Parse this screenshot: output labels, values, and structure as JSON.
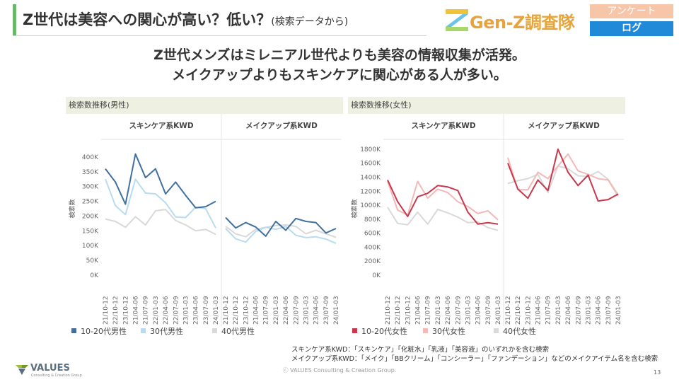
{
  "header": {
    "title": "Z世代は美容への関心が高い？低い？",
    "title_sub": "(検索データから)",
    "logo_text": "Gen-Z調査隊",
    "badge_survey": "アンケート",
    "badge_log": "ログ"
  },
  "headline": {
    "line1": "Z世代メンズはミレニアル世代よりも美容の情報収集が活発。",
    "line2": "メイクアップよりもスキンケアに関心がある人が多い。"
  },
  "chart_data": [
    {
      "type": "line",
      "title": "検索数推移(男性)",
      "ylabel": "検索数",
      "ylim": [
        0,
        450000
      ],
      "y_ticks": [
        "0K",
        "50K",
        "100K",
        "150K",
        "200K",
        "250K",
        "300K",
        "350K",
        "400K"
      ],
      "categories": [
        "21/10-12",
        "22/10-12",
        "23/10-12",
        "21/04-06",
        "21/07-09",
        "22/01-03",
        "22/04-06",
        "22/07-09",
        "23/01-03",
        "23/04-06",
        "23/07-09",
        "24/01-03"
      ],
      "facets": [
        {
          "label": "スキンケア系KWD",
          "series": [
            {
              "name": "10-20代男性",
              "values": [
                360000,
                315000,
                240000,
                410000,
                330000,
                360000,
                275000,
                315000,
                270000,
                228000,
                232000,
                250000
              ]
            },
            {
              "name": "30代男性",
              "values": [
                325000,
                235000,
                205000,
                325000,
                278000,
                275000,
                245000,
                197000,
                195000,
                230000,
                225000,
                160000
              ]
            },
            {
              "name": "40代男性",
              "values": [
                190000,
                182000,
                162000,
                198000,
                170000,
                218000,
                222000,
                185000,
                170000,
                150000,
                155000,
                138000
              ]
            }
          ]
        },
        {
          "label": "メイクアップ系KWD",
          "series": [
            {
              "name": "10-20代男性",
              "values": [
                195000,
                160000,
                178000,
                163000,
                132000,
                182000,
                152000,
                192000,
                182000,
                178000,
                143000,
                158000
              ]
            },
            {
              "name": "30代男性",
              "values": [
                158000,
                123000,
                112000,
                148000,
                162000,
                155000,
                165000,
                135000,
                127000,
                130000,
                122000,
                108000
              ]
            },
            {
              "name": "40代男性",
              "values": [
                165000,
                140000,
                130000,
                155000,
                162000,
                168000,
                170000,
                165000,
                140000,
                152000,
                140000,
                128000
              ]
            }
          ]
        }
      ],
      "legend": [
        {
          "name": "10-20代男性",
          "color": "#41709e"
        },
        {
          "name": "30代男性",
          "color": "#b7dcf0"
        },
        {
          "name": "40代男性",
          "color": "#d9d9d9"
        }
      ]
    },
    {
      "type": "line",
      "title": "検索数推移(女性)",
      "ylabel": "検索数",
      "ylim": [
        0,
        1900000
      ],
      "y_ticks": [
        "0K",
        "200K",
        "400K",
        "600K",
        "800K",
        "1000K",
        "1200K",
        "1400K",
        "1600K",
        "1800K"
      ],
      "categories": [
        "21/10-12",
        "22/10-12",
        "23/10-12",
        "21/04-06",
        "21/07-09",
        "22/01-03",
        "22/04-06",
        "22/07-09",
        "23/01-03",
        "23/04-06",
        "23/07-09",
        "24/01-03"
      ],
      "facets": [
        {
          "label": "スキンケア系KWD",
          "series": [
            {
              "name": "10-20代女性",
              "values": [
                1360000,
                1050000,
                840000,
                1120000,
                1170000,
                1280000,
                1260000,
                1210000,
                900000,
                730000,
                750000,
                730000
              ]
            },
            {
              "name": "30代女性",
              "values": [
                1340000,
                930000,
                860000,
                1340000,
                1100000,
                1230000,
                1180000,
                1050000,
                980000,
                880000,
                920000,
                790000
              ]
            },
            {
              "name": "40代女性",
              "values": [
                970000,
                740000,
                720000,
                900000,
                730000,
                940000,
                890000,
                830000,
                750000,
                760000,
                680000,
                640000
              ]
            }
          ]
        },
        {
          "label": "メイクアップ系KWD",
          "series": [
            {
              "name": "10-20代女性",
              "values": [
                1600000,
                1230000,
                1100000,
                1360000,
                1210000,
                1800000,
                1470000,
                1280000,
                1430000,
                1060000,
                1080000,
                1160000
              ]
            },
            {
              "name": "30代女性",
              "values": [
                1680000,
                1220000,
                1220000,
                1470000,
                1380000,
                1560000,
                1730000,
                1490000,
                1440000,
                1380000,
                1360000,
                1130000
              ]
            },
            {
              "name": "40代女性",
              "values": [
                1310000,
                1350000,
                1380000,
                1440000,
                1180000,
                1560000,
                1520000,
                1420000,
                1410000,
                1480000,
                1370000,
                1150000
              ]
            }
          ]
        }
      ],
      "legend": [
        {
          "name": "10-20代女性",
          "color": "#c8374c"
        },
        {
          "name": "30代女性",
          "color": "#f4b8b6"
        },
        {
          "name": "40代女性",
          "color": "#d9d9d9"
        }
      ]
    }
  ],
  "notes": {
    "line1": "スキンケア系KWD：「スキンケア」「化粧水」「乳液」「美容液」のいずれかを含む検索",
    "line2": "メイクアップ系KWD：「メイク」「BBクリーム」「コンシーラー」「ファンデーション」などのメイクアイテム名を含む検索"
  },
  "footer": {
    "logo_name": "VALUES",
    "logo_sub": "Consulting & Creation Group",
    "copyright": "ⓒ VALUES Consulting & Creation Group.",
    "page": "13"
  }
}
